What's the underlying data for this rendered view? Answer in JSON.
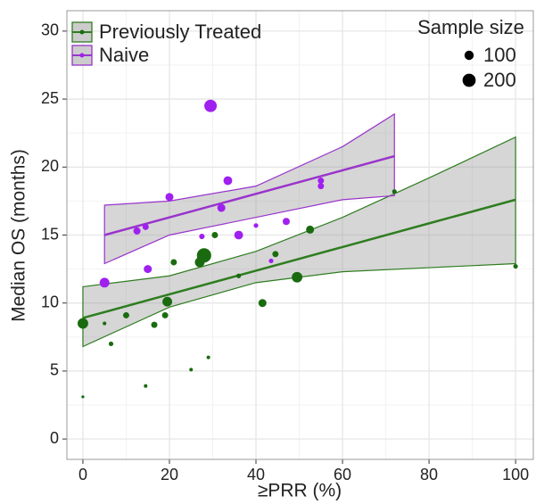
{
  "chart_data": {
    "type": "scatter",
    "x_label": "≥PRR (%)",
    "y_label": "Median OS (months)",
    "xlim": [
      -3.7,
      104.1
    ],
    "ylim": [
      -1.5,
      31.5
    ],
    "xticks": [
      0,
      20,
      40,
      60,
      80,
      100
    ],
    "yticks": [
      0,
      5,
      10,
      15,
      20,
      25,
      30
    ],
    "grid": true,
    "minor_grid": true,
    "legend_position": "top-left",
    "size_legend": {
      "title": "Sample size",
      "values": [
        100,
        200
      ]
    },
    "series": [
      {
        "name": "Previously Treated",
        "color": "#1a6b10",
        "line_color": "#2e7d1f",
        "x": [
          0,
          0,
          5,
          6.5,
          10,
          14.5,
          16.5,
          19,
          19.5,
          21,
          25,
          27,
          28,
          29,
          30.5,
          36,
          41.5,
          44.5,
          49.5,
          52.5,
          72,
          100
        ],
        "values": [
          8.5,
          3.1,
          8.5,
          7.0,
          9.1,
          3.9,
          8.4,
          9.1,
          10.1,
          13.0,
          5.1,
          13.0,
          13.5,
          6.0,
          15.0,
          12.0,
          10.0,
          13.6,
          11.9,
          15.4,
          18.2,
          12.7
        ],
        "sizes": [
          130,
          10,
          15,
          25,
          45,
          15,
          45,
          45,
          110,
          45,
          15,
          110,
          240,
          15,
          45,
          25,
          75,
          45,
          130,
          75,
          25,
          25
        ],
        "fit": {
          "x": [
            0,
            20,
            40,
            60,
            80,
            100
          ],
          "values": [
            8.9,
            10.64,
            12.38,
            14.12,
            15.86,
            17.6
          ],
          "lower": [
            6.8,
            9.7,
            11.5,
            12.3,
            12.6,
            12.9
          ],
          "upper": [
            11.2,
            12.0,
            13.8,
            16.3,
            19.2,
            22.2
          ]
        }
      },
      {
        "name": "Naive",
        "color": "#a020f0",
        "line_color": "#9933cc",
        "x": [
          5,
          12.5,
          14.5,
          15,
          20,
          27.5,
          29.5,
          32,
          33.5,
          36,
          40,
          43.5,
          47,
          55,
          55
        ],
        "values": [
          11.5,
          15.3,
          15.6,
          12.5,
          17.8,
          14.9,
          24.5,
          17.0,
          19.0,
          15.0,
          15.7,
          13.1,
          16.0,
          19.0,
          18.6
        ],
        "sizes": [
          110,
          60,
          45,
          75,
          75,
          35,
          180,
          75,
          90,
          90,
          25,
          25,
          60,
          45,
          45
        ],
        "fit": {
          "x": [
            5,
            20,
            40,
            60,
            72
          ],
          "values": [
            15.0,
            16.3,
            18.03,
            19.76,
            20.8
          ],
          "lower": [
            12.9,
            15.0,
            16.3,
            17.6,
            17.9
          ],
          "upper": [
            17.2,
            17.5,
            18.6,
            21.5,
            23.9
          ]
        }
      }
    ]
  }
}
